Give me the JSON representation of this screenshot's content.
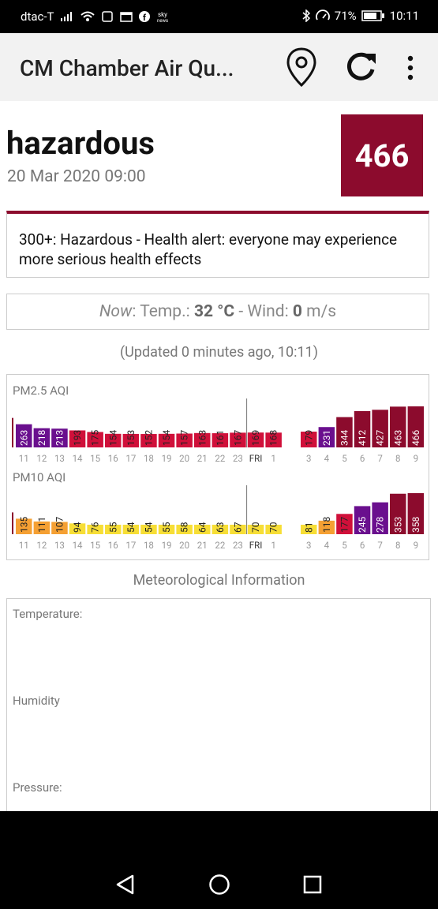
{
  "status_bar": {
    "carrier": "dtac-T",
    "battery": "71%",
    "time": "10:11",
    "icons": [
      "signal-icon",
      "wifi-icon",
      "sim-icon",
      "calendar-icon",
      "facebook-icon",
      "sky-news-icon",
      "bluetooth-icon",
      "speed-icon",
      "battery-icon"
    ]
  },
  "app_bar": {
    "title": "CM Chamber Air Qu...",
    "icons": [
      "location-pin-icon",
      "refresh-icon",
      "more-vert-icon"
    ]
  },
  "aqi": {
    "level": "hazardous",
    "datetime": "20 Mar 2020 09:00",
    "value": "466",
    "color": "#8c0b2d",
    "alert": "300+: Hazardous - Health alert: everyone may experience more serious health effects"
  },
  "weather": {
    "now": "Now",
    "temp_label": ": Temp.: ",
    "temp_value": "32 °C",
    "wind_label": " - Wind: ",
    "wind_value": "0",
    "wind_unit": " m/s"
  },
  "updated": "(Updated 0 minutes ago, 10:11)",
  "chart_data": [
    {
      "type": "bar",
      "title": "PM2.5 AQI",
      "categories": [
        "11",
        "12",
        "13",
        "14",
        "15",
        "16",
        "17",
        "18",
        "19",
        "20",
        "21",
        "22",
        "23",
        "FRI",
        "1",
        "3",
        "4",
        "5",
        "6",
        "7",
        "8",
        "9"
      ],
      "values": [
        263,
        218,
        213,
        193,
        175,
        154,
        153,
        152,
        154,
        157,
        163,
        161,
        167,
        169,
        168,
        179,
        231,
        344,
        412,
        427,
        463,
        466
      ],
      "colors": [
        "#6a0f8e",
        "#6a0f8e",
        "#6a0f8e",
        "#d0103a",
        "#d0103a",
        "#d0103a",
        "#d0103a",
        "#d0103a",
        "#d0103a",
        "#d0103a",
        "#d0103a",
        "#d0103a",
        "#d0103a",
        "#d0103a",
        "#d0103a",
        "#d0103a",
        "#6a0f8e",
        "#8c0b2d",
        "#8c0b2d",
        "#8c0b2d",
        "#8c0b2d",
        "#8c0b2d"
      ]
    },
    {
      "type": "bar",
      "title": "PM10 AQI",
      "categories": [
        "11",
        "12",
        "13",
        "14",
        "15",
        "16",
        "17",
        "18",
        "19",
        "20",
        "21",
        "22",
        "23",
        "FRI",
        "1",
        "3",
        "4",
        "5",
        "6",
        "7",
        "8",
        "9"
      ],
      "values": [
        135,
        111,
        107,
        94,
        76,
        55,
        54,
        54,
        55,
        58,
        64,
        63,
        67,
        70,
        70,
        81,
        118,
        177,
        245,
        278,
        353,
        358
      ],
      "colors": [
        "#f5a033",
        "#f5a033",
        "#f5a033",
        "#f7de36",
        "#f7de36",
        "#f7de36",
        "#f7de36",
        "#f7de36",
        "#f7de36",
        "#f7de36",
        "#f7de36",
        "#f7de36",
        "#f7de36",
        "#f7de36",
        "#f7de36",
        "#f7de36",
        "#f5a033",
        "#d0103a",
        "#6a0f8e",
        "#6a0f8e",
        "#8c0b2d",
        "#8c0b2d"
      ]
    }
  ],
  "meteorological": {
    "title": "Meteorological Information",
    "temperature_label": "Temperature:",
    "humidity_label": "Humidity",
    "pressure_label": "Pressure:"
  },
  "nav_bar": {
    "icons": [
      "back-icon",
      "home-icon",
      "recents-icon"
    ]
  }
}
